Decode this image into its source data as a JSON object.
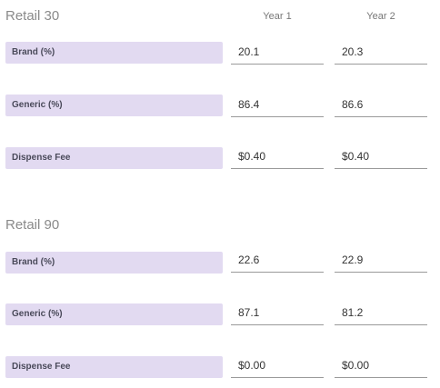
{
  "column_headers": [
    "Year 1",
    "Year 2"
  ],
  "sections": [
    {
      "title": "Retail 30",
      "rows": [
        {
          "label": "Brand (%)",
          "year1": "20.1",
          "year2": "20.3"
        },
        {
          "label": "Generic (%)",
          "year1": "86.4",
          "year2": "86.6"
        },
        {
          "label": "Dispense Fee",
          "year1": "$0.40",
          "year2": "$0.40"
        }
      ]
    },
    {
      "title": "Retail 90",
      "rows": [
        {
          "label": "Brand (%)",
          "year1": "22.6",
          "year2": "22.9"
        },
        {
          "label": "Generic (%)",
          "year1": "87.1",
          "year2": "81.2"
        },
        {
          "label": "Dispense Fee",
          "year1": "$0.00",
          "year2": "$0.00"
        }
      ]
    }
  ],
  "colors": {
    "label_background": "#e2daf1",
    "field_underline": "#9a9a9a",
    "section_title": "#8a8a8a"
  }
}
